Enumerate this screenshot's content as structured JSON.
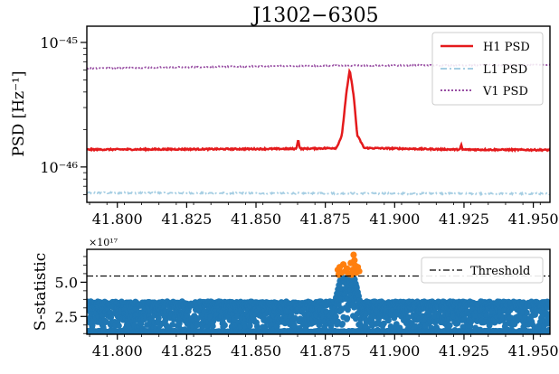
{
  "chart_data": [
    {
      "type": "line",
      "title": "J1302−6305",
      "ylabel": "PSD [Hz⁻¹]",
      "xlabel": "",
      "yscale": "log",
      "xlim": [
        41.789,
        41.956
      ],
      "ylim": [
        5.2e-47,
        1.35e-45
      ],
      "x_ticks": [
        "41.800",
        "41.825",
        "41.850",
        "41.875",
        "41.900",
        "41.925",
        "41.950"
      ],
      "y_tick_labels": [
        "10⁻⁴⁵",
        "10⁻⁴⁶"
      ],
      "legend_position": "top-right",
      "series": [
        {
          "name": "H1 PSD",
          "color": "#e41a1c",
          "style": "solid",
          "baseline": 1.38e-46,
          "points": [
            [
              41.789,
              1.38e-46
            ],
            [
              41.8645,
              1.4e-46
            ],
            [
              41.8652,
              1.66e-46
            ],
            [
              41.8659,
              1.4e-46
            ],
            [
              41.879,
              1.42e-46
            ],
            [
              41.881,
              1.8e-46
            ],
            [
              41.8825,
              3.8e-46
            ],
            [
              41.8838,
              6e-46
            ],
            [
              41.8852,
              3.8e-46
            ],
            [
              41.8865,
              1.8e-46
            ],
            [
              41.889,
              1.42e-46
            ],
            [
              41.9235,
              1.38e-46
            ],
            [
              41.924,
              1.5e-46
            ],
            [
              41.9245,
              1.38e-46
            ],
            [
              41.956,
              1.37e-46
            ]
          ]
        },
        {
          "name": "L1 PSD",
          "color": "#a6cee3",
          "style": "dashdot",
          "baseline": 6.2e-47,
          "points": [
            [
              41.789,
              6.2e-47
            ],
            [
              41.956,
              6.1e-47
            ]
          ]
        },
        {
          "name": "V1 PSD",
          "color": "#984ea3",
          "style": "dotted",
          "baseline": 6.3e-46,
          "points": [
            [
              41.789,
              6.2e-46
            ],
            [
              41.87,
              6.5e-46
            ],
            [
              41.956,
              6.6e-46
            ]
          ]
        }
      ]
    },
    {
      "type": "scatter",
      "title": "",
      "ylabel": "S-statistic",
      "xlabel": "",
      "y_scale_label": "×10¹⁷",
      "xlim": [
        41.789,
        41.956
      ],
      "ylim": [
        1.2,
        7.4
      ],
      "x_ticks": [
        "41.800",
        "41.825",
        "41.850",
        "41.875",
        "41.900",
        "41.925",
        "41.950"
      ],
      "y_ticks": [
        "2.5",
        "5.0"
      ],
      "legend_position": "top-right",
      "threshold": {
        "name": "Threshold",
        "value": 5.45,
        "color": "#000000",
        "style": "dashdot"
      },
      "series": [
        {
          "name": "",
          "color": "#1f77b4",
          "band": [
            1.35,
            3.6
          ],
          "peak": [
            [
              41.8785,
              3.6
            ],
            [
              41.8805,
              5.3
            ],
            [
              41.8855,
              5.3
            ],
            [
              41.8875,
              3.6
            ]
          ]
        },
        {
          "name": "",
          "color": "#ff7f0e",
          "points": [
            [
              41.8795,
              5.9
            ],
            [
              41.8802,
              6.1
            ],
            [
              41.8808,
              5.7
            ],
            [
              41.8815,
              6.3
            ],
            [
              41.8822,
              5.8
            ],
            [
              41.8828,
              6.0
            ],
            [
              41.8835,
              5.6
            ],
            [
              41.8842,
              6.4
            ],
            [
              41.8848,
              5.9
            ],
            [
              41.8852,
              7.0
            ],
            [
              41.8855,
              6.6
            ],
            [
              41.8858,
              6.2
            ],
            [
              41.8862,
              5.7
            ],
            [
              41.8867,
              6.1
            ],
            [
              41.8872,
              5.8
            ],
            [
              41.8798,
              5.55
            ],
            [
              41.8845,
              5.55
            ]
          ]
        }
      ]
    }
  ]
}
